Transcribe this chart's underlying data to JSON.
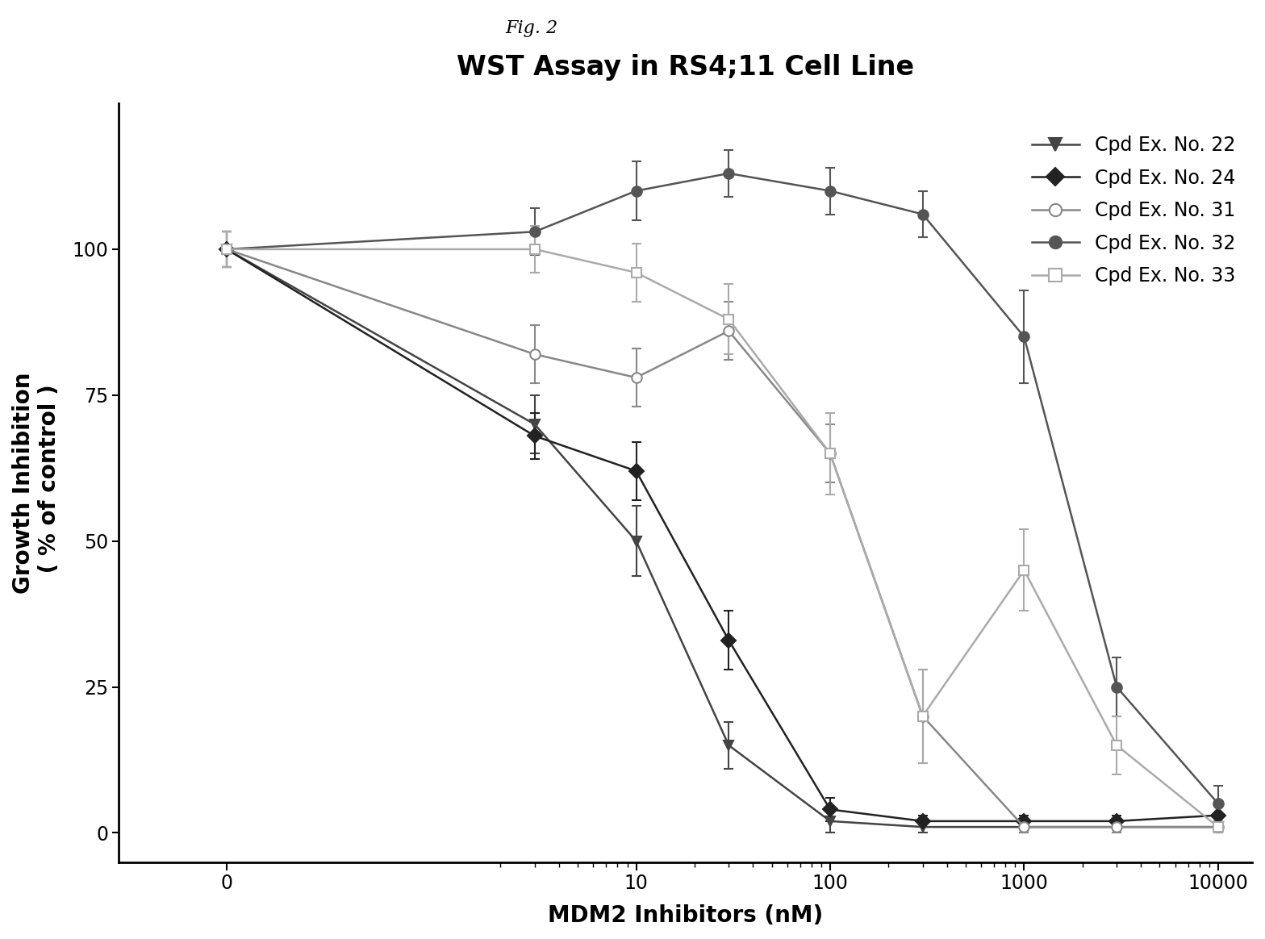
{
  "title": "WST Assay in RS4;11 Cell Line",
  "fig_label": "Fig. 2",
  "xlabel": "MDM2 Inhibitors (nM)",
  "ylabel": "Growth Inhibition\n ( % of control )",
  "ylim": [
    -5,
    125
  ],
  "yticks": [
    0,
    25,
    50,
    75,
    100
  ],
  "background_color": "#ffffff",
  "series": [
    {
      "name": "Cpd Ex. No. 22",
      "color": "#444444",
      "marker": "v",
      "marker_face": "#444444",
      "marker_edge": "#444444",
      "x": [
        0,
        3,
        10,
        30,
        100,
        300,
        1000,
        3000,
        10000
      ],
      "y": [
        100,
        70,
        50,
        15,
        2,
        1,
        1,
        1,
        1
      ],
      "yerr": [
        3,
        5,
        6,
        4,
        2,
        1,
        1,
        1,
        1
      ]
    },
    {
      "name": "Cpd Ex. No. 24",
      "color": "#222222",
      "marker": "D",
      "marker_face": "#222222",
      "marker_edge": "#222222",
      "x": [
        0,
        3,
        10,
        30,
        100,
        300,
        1000,
        3000,
        10000
      ],
      "y": [
        100,
        68,
        62,
        33,
        4,
        2,
        2,
        2,
        3
      ],
      "yerr": [
        3,
        4,
        5,
        5,
        2,
        1,
        1,
        1,
        2
      ]
    },
    {
      "name": "Cpd Ex. No. 31",
      "color": "#888888",
      "marker": "o",
      "marker_face": "white",
      "marker_edge": "#888888",
      "x": [
        0,
        3,
        10,
        30,
        100,
        300,
        1000,
        3000,
        10000
      ],
      "y": [
        100,
        82,
        78,
        86,
        65,
        20,
        1,
        1,
        1
      ],
      "yerr": [
        3,
        5,
        5,
        5,
        5,
        8,
        1,
        1,
        1
      ]
    },
    {
      "name": "Cpd Ex. No. 32",
      "color": "#555555",
      "marker": "o",
      "marker_face": "#555555",
      "marker_edge": "#555555",
      "x": [
        0,
        3,
        10,
        30,
        100,
        300,
        1000,
        3000,
        10000
      ],
      "y": [
        100,
        103,
        110,
        113,
        110,
        106,
        85,
        25,
        5
      ],
      "yerr": [
        3,
        4,
        5,
        4,
        4,
        4,
        8,
        5,
        3
      ]
    },
    {
      "name": "Cpd Ex. No. 33",
      "color": "#aaaaaa",
      "marker": "s",
      "marker_face": "white",
      "marker_edge": "#aaaaaa",
      "x": [
        0,
        3,
        10,
        30,
        100,
        300,
        1000,
        3000,
        10000
      ],
      "y": [
        100,
        100,
        96,
        88,
        65,
        20,
        45,
        15,
        1
      ],
      "yerr": [
        3,
        4,
        5,
        6,
        7,
        8,
        7,
        5,
        1
      ]
    }
  ],
  "xtick_labels": [
    "0",
    "10",
    "100",
    "1000",
    "10000"
  ],
  "xtick_positions_log": [
    10,
    100,
    1000,
    10000
  ]
}
